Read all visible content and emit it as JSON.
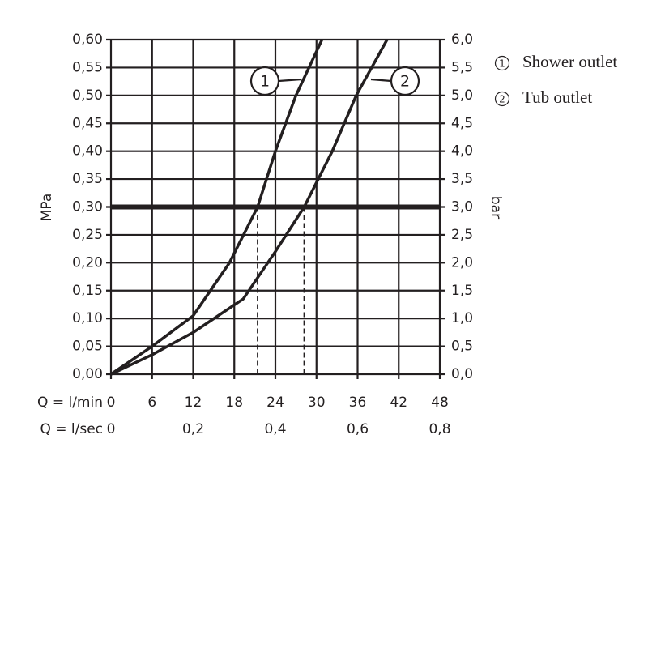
{
  "chart_data": {
    "type": "line",
    "y_label": "MPa",
    "y2_label": "bar",
    "x_label": "Q = l/min",
    "x2_label": "Q = l/sec",
    "xlim": [
      0,
      48
    ],
    "xticks": [
      0,
      6,
      12,
      18,
      24,
      30,
      36,
      42,
      48
    ],
    "x2lim": [
      0,
      0.8
    ],
    "x2ticks": [
      0,
      {
        "value": 0.2,
        "label": "0,2"
      },
      {
        "value": 0.4,
        "label": "0,4"
      },
      {
        "value": 0.6,
        "label": "0,6"
      },
      {
        "value": 0.8,
        "label": "0,8"
      }
    ],
    "ylim": [
      0,
      0.6
    ],
    "yticks": [
      {
        "value": 0,
        "label": "0,00"
      },
      {
        "value": 0.05,
        "label": "0,05"
      },
      {
        "value": 0.1,
        "label": "0,10"
      },
      {
        "value": 0.15,
        "label": "0,15"
      },
      {
        "value": 0.2,
        "label": "0,20"
      },
      {
        "value": 0.25,
        "label": "0,25"
      },
      {
        "value": 0.3,
        "label": "0,30"
      },
      {
        "value": 0.35,
        "label": "0,35"
      },
      {
        "value": 0.4,
        "label": "0,40"
      },
      {
        "value": 0.45,
        "label": "0,45"
      },
      {
        "value": 0.5,
        "label": "0,50"
      },
      {
        "value": 0.55,
        "label": "0,55"
      },
      {
        "value": 0.6,
        "label": "0,60"
      }
    ],
    "y2lim": [
      0,
      6
    ],
    "y2ticks": [
      {
        "value": 0,
        "label": "0,0"
      },
      {
        "value": 0.5,
        "label": "0,5"
      },
      {
        "value": 1,
        "label": "1,0"
      },
      {
        "value": 1.5,
        "label": "1,5"
      },
      {
        "value": 2,
        "label": "2,0"
      },
      {
        "value": 2.5,
        "label": "2,5"
      },
      {
        "value": 3,
        "label": "3,0"
      },
      {
        "value": 3.5,
        "label": "3,5"
      },
      {
        "value": 4,
        "label": "4,0"
      },
      {
        "value": 4.5,
        "label": "4,5"
      },
      {
        "value": 5,
        "label": "5,0"
      },
      {
        "value": 5.5,
        "label": "5,5"
      },
      {
        "value": 6,
        "label": "6,0"
      }
    ],
    "grid": true,
    "reference_line": 0.3,
    "drop_lines": [
      21.4,
      28.2
    ],
    "series": [
      {
        "name": "Shower outlet",
        "number": "1",
        "color": "#231f20",
        "x": [
          0,
          6,
          12,
          17.3,
          21.4,
          24,
          27,
          30.8
        ],
        "values": [
          0,
          0.05,
          0.105,
          0.2,
          0.3,
          0.4,
          0.5,
          0.6
        ]
      },
      {
        "name": "Tub outlet",
        "number": "2",
        "color": "#231f20",
        "x": [
          0,
          6,
          12,
          19.3,
          24,
          28.2,
          32.3,
          35.8,
          40.3
        ],
        "values": [
          0,
          0.035,
          0.075,
          0.135,
          0.22,
          0.3,
          0.4,
          0.5,
          0.6
        ]
      }
    ]
  }
}
